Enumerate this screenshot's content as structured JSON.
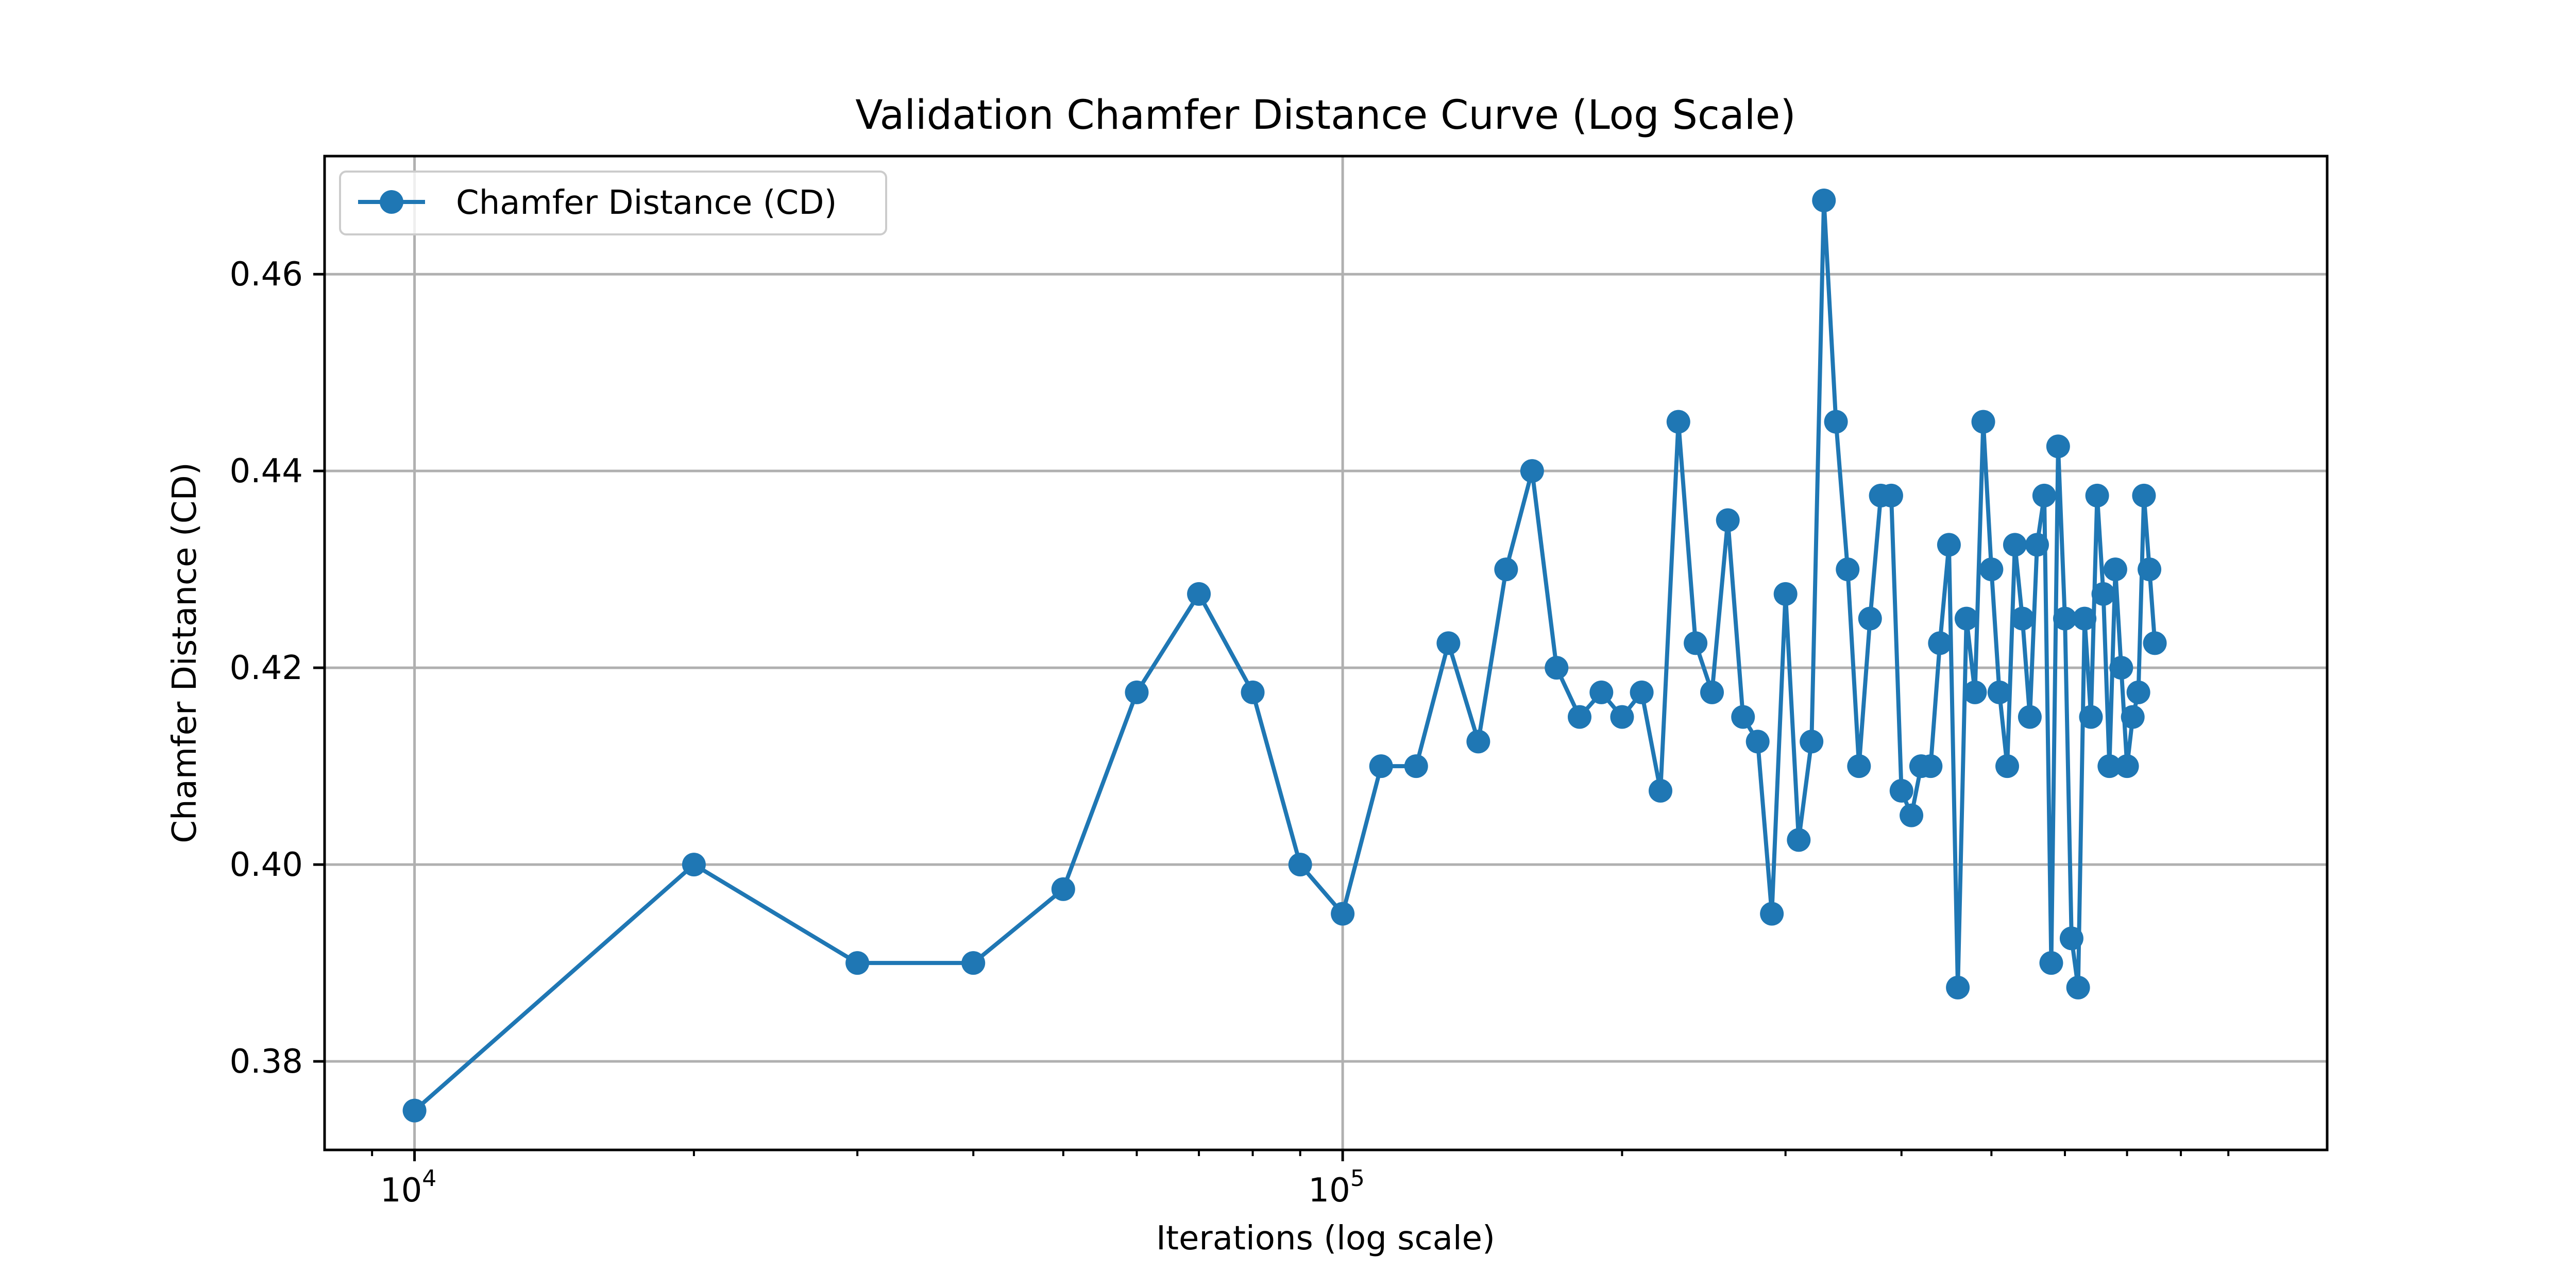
{
  "chart_data": {
    "type": "line",
    "title": "Validation Chamfer Distance Curve (Log Scale)",
    "xlabel": "Iterations (log scale)",
    "ylabel": "Chamfer Distance (CD)",
    "xscale": "log",
    "xlim": [
      8000,
      1150000
    ],
    "ylim": [
      0.371,
      0.472
    ],
    "grid": true,
    "legend_position": "top-left",
    "x_ticks": [
      {
        "value": 10000,
        "base": "10",
        "exp": "4"
      },
      {
        "value": 100000,
        "base": "10",
        "exp": "5"
      }
    ],
    "y_ticks": [
      0.38,
      0.4,
      0.42,
      0.44,
      0.46
    ],
    "y_tick_labels": [
      "0.38",
      "0.40",
      "0.42",
      "0.44",
      "0.46"
    ],
    "series": [
      {
        "name": "Chamfer Distance (CD)",
        "color": "#1f77b4",
        "x": [
          10000,
          20000,
          30000,
          40000,
          50000,
          60000,
          70000,
          80000,
          90000,
          100000,
          110000,
          120000,
          130000,
          140000,
          150000,
          160000,
          170000,
          180000,
          190000,
          200000,
          210000,
          220000,
          230000,
          240000,
          250000,
          260000,
          270000,
          280000,
          290000,
          300000,
          310000,
          320000,
          330000,
          340000,
          350000,
          360000,
          370000,
          380000,
          390000,
          400000,
          410000,
          420000,
          430000,
          440000,
          450000,
          460000,
          470000,
          480000,
          490000,
          500000,
          510000,
          520000,
          530000,
          540000,
          550000,
          560000,
          570000,
          580000,
          590000,
          600000,
          610000,
          620000,
          630000,
          640000,
          650000,
          660000,
          670000,
          680000,
          690000,
          700000,
          710000,
          720000,
          730000,
          740000,
          750000
        ],
        "y": [
          0.375,
          0.4,
          0.39,
          0.39,
          0.3975,
          0.4175,
          0.4275,
          0.4175,
          0.4,
          0.395,
          0.41,
          0.41,
          0.4225,
          0.4125,
          0.43,
          0.44,
          0.42,
          0.415,
          0.4175,
          0.415,
          0.4175,
          0.4075,
          0.445,
          0.4225,
          0.4175,
          0.435,
          0.415,
          0.4125,
          0.395,
          0.4275,
          0.4025,
          0.4125,
          0.4675,
          0.445,
          0.43,
          0.41,
          0.425,
          0.4375,
          0.4375,
          0.4075,
          0.405,
          0.41,
          0.41,
          0.4225,
          0.4325,
          0.3875,
          0.425,
          0.4175,
          0.445,
          0.43,
          0.4175,
          0.41,
          0.4325,
          0.425,
          0.415,
          0.4325,
          0.4375,
          0.39,
          0.4425,
          0.425,
          0.3925,
          0.3875,
          0.425,
          0.415,
          0.4375,
          0.4275,
          0.41,
          0.43,
          0.42,
          0.41,
          0.415,
          0.4175,
          0.4375,
          0.43,
          0.4225
        ]
      }
    ]
  }
}
